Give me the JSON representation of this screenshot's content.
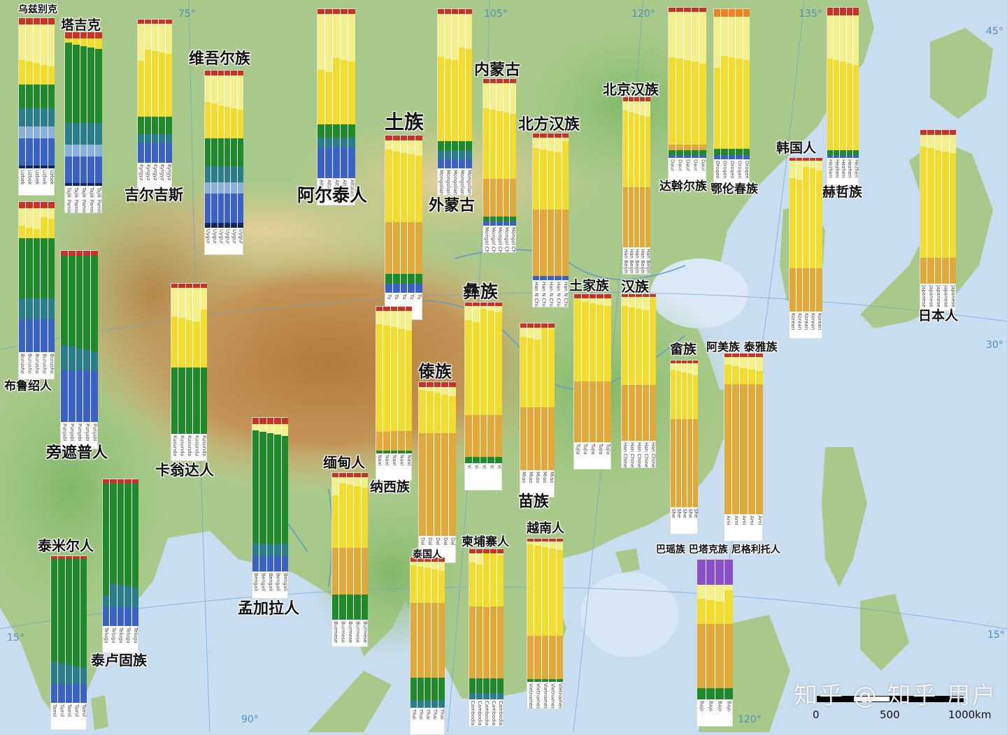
{
  "colors": {
    "k_yellow_light": "#f3f08c",
    "k_yellow": "#f2dd2f",
    "k_gold": "#e1a93a",
    "k_green": "#1f8a2a",
    "k_teal": "#2a7d8a",
    "k_lightblue": "#8bb0dc",
    "k_blue": "#3a62c4",
    "k_navy": "#14245e",
    "k_purple": "#8b4fc9",
    "k_red": "#c73325",
    "k_orange": "#f0821e"
  },
  "grid_labels": [
    "75°",
    "105°",
    "120°",
    "135°",
    "45°",
    "30°",
    "15°",
    "15°",
    "90°",
    "120°"
  ],
  "scale_bar": {
    "labels": [
      "0",
      "500",
      "1000km"
    ]
  },
  "watermark": "知乎 @ 知乎 用户",
  "populations": [
    {
      "id": "uzbek",
      "name": "乌兹别克",
      "sample": "Uzbek",
      "comp": [
        [
          0.04,
          "red"
        ],
        [
          0.28,
          "yellow_light"
        ],
        [
          0.12,
          "yellow"
        ],
        [
          0.16,
          "green"
        ],
        [
          0.12,
          "teal"
        ],
        [
          0.08,
          "lightblue"
        ],
        [
          0.18,
          "blue"
        ],
        [
          0.02,
          "navy"
        ]
      ]
    },
    {
      "id": "tajik",
      "name": "塔吉克",
      "sample": "Tajik Pamiri",
      "comp": [
        [
          0.04,
          "red"
        ],
        [
          0.03,
          "yellow"
        ],
        [
          0.52,
          "green"
        ],
        [
          0.14,
          "teal"
        ],
        [
          0.08,
          "lightblue"
        ],
        [
          0.17,
          "blue"
        ],
        [
          0.02,
          "navy"
        ]
      ]
    },
    {
      "id": "kyrgyz",
      "name": "吉尔吉斯",
      "sample": "Kyrgyz",
      "comp": [
        [
          0.03,
          "red"
        ],
        [
          0.22,
          "yellow_light"
        ],
        [
          0.43,
          "yellow"
        ],
        [
          0.12,
          "green"
        ],
        [
          0.06,
          "teal"
        ],
        [
          0.14,
          "blue"
        ]
      ]
    },
    {
      "id": "uyghur",
      "name": "维吾尔族",
      "sample": "Uygur",
      "comp": [
        [
          0.03,
          "red"
        ],
        [
          0.18,
          "yellow_light"
        ],
        [
          0.22,
          "yellow"
        ],
        [
          0.18,
          "green"
        ],
        [
          0.1,
          "teal"
        ],
        [
          0.07,
          "lightblue"
        ],
        [
          0.19,
          "blue"
        ],
        [
          0.03,
          "navy"
        ]
      ]
    },
    {
      "id": "altaian",
      "name": "阿尔泰人",
      "sample": "Altaian",
      "comp": [
        [
          0.03,
          "red"
        ],
        [
          0.3,
          "yellow_light"
        ],
        [
          0.35,
          "yellow"
        ],
        [
          0.08,
          "green"
        ],
        [
          0.06,
          "teal"
        ],
        [
          0.18,
          "blue"
        ]
      ]
    },
    {
      "id": "tu",
      "name": "土族",
      "sample": "Tu",
      "comp": [
        [
          0.03,
          "red"
        ],
        [
          0.08,
          "yellow_light"
        ],
        [
          0.44,
          "yellow"
        ],
        [
          0.33,
          "gold"
        ],
        [
          0.06,
          "green"
        ],
        [
          0.06,
          "blue"
        ]
      ]
    },
    {
      "id": "mongol",
      "name": "外蒙古",
      "sample": "Mongolian",
      "comp": [
        [
          0.03,
          "red"
        ],
        [
          0.25,
          "yellow_light"
        ],
        [
          0.55,
          "yellow"
        ],
        [
          0.06,
          "green"
        ],
        [
          0.05,
          "teal"
        ],
        [
          0.06,
          "blue"
        ]
      ]
    },
    {
      "id": "inner_mongol",
      "name": "内蒙古",
      "sample": "Mongol China",
      "comp": [
        [
          0.03,
          "red"
        ],
        [
          0.2,
          "yellow_light"
        ],
        [
          0.45,
          "yellow"
        ],
        [
          0.26,
          "gold"
        ],
        [
          0.03,
          "green"
        ],
        [
          0.03,
          "blue"
        ]
      ]
    },
    {
      "id": "northern_han",
      "name": "北方汉族",
      "sample": "Han N China",
      "comp": [
        [
          0.03,
          "red"
        ],
        [
          0.06,
          "yellow_light"
        ],
        [
          0.43,
          "yellow"
        ],
        [
          0.45,
          "gold"
        ],
        [
          0.03,
          "blue"
        ]
      ]
    },
    {
      "id": "beijing_han",
      "name": "北京汉族",
      "sample": "Han Beijing",
      "comp": [
        [
          0.03,
          "red"
        ],
        [
          0.1,
          "yellow_light"
        ],
        [
          0.47,
          "yellow"
        ],
        [
          0.4,
          "gold"
        ]
      ]
    },
    {
      "id": "daur",
      "name": "达斡尔族",
      "sample": "Daur",
      "comp": [
        [
          0.03,
          "red"
        ],
        [
          0.3,
          "yellow_light"
        ],
        [
          0.58,
          "yellow"
        ],
        [
          0.04,
          "gold"
        ],
        [
          0.03,
          "green"
        ],
        [
          0.02,
          "blue"
        ]
      ]
    },
    {
      "id": "oroqen",
      "name": "鄂伦春族",
      "sample": "Oroqen",
      "comp": [
        [
          0.05,
          "orange"
        ],
        [
          0.3,
          "yellow_light"
        ],
        [
          0.58,
          "yellow"
        ],
        [
          0.04,
          "green"
        ],
        [
          0.03,
          "blue"
        ]
      ]
    },
    {
      "id": "hezhen",
      "name": "赫哲族",
      "sample": "Hezhen",
      "comp": [
        [
          0.05,
          "red"
        ],
        [
          0.3,
          "yellow_light"
        ],
        [
          0.6,
          "yellow"
        ],
        [
          0.03,
          "green"
        ],
        [
          0.02,
          "blue"
        ]
      ]
    },
    {
      "id": "korean",
      "name": "韩国人",
      "sample": "Korean",
      "comp": [
        [
          0.02,
          "red"
        ],
        [
          0.08,
          "yellow_light"
        ],
        [
          0.62,
          "yellow"
        ],
        [
          0.28,
          "gold"
        ]
      ]
    },
    {
      "id": "japanese",
      "name": "日本人",
      "sample": "Japanese",
      "comp": [
        [
          0.03,
          "red"
        ],
        [
          0.1,
          "yellow_light"
        ],
        [
          0.7,
          "yellow"
        ],
        [
          0.17,
          "gold"
        ]
      ]
    },
    {
      "id": "burusho",
      "name": "布鲁绍人",
      "sample": "Burusho",
      "comp": [
        [
          0.04,
          "red"
        ],
        [
          0.1,
          "yellow_light"
        ],
        [
          0.1,
          "yellow"
        ],
        [
          0.4,
          "green"
        ],
        [
          0.14,
          "teal"
        ],
        [
          0.22,
          "blue"
        ]
      ]
    },
    {
      "id": "pathan",
      "name": "旁遮普人",
      "sample": "Punjabi",
      "comp": [
        [
          0.03,
          "red"
        ],
        [
          0.55,
          "green"
        ],
        [
          0.12,
          "teal"
        ],
        [
          0.3,
          "blue"
        ]
      ]
    },
    {
      "id": "kusunda",
      "name": "卡翁达人",
      "sample": "Kusunda",
      "comp": [
        [
          0.03,
          "red"
        ],
        [
          0.18,
          "yellow_light"
        ],
        [
          0.35,
          "yellow"
        ],
        [
          0.44,
          "green"
        ]
      ]
    },
    {
      "id": "bengali",
      "name": "孟加拉人",
      "sample": "Bengali",
      "comp": [
        [
          0.04,
          "red"
        ],
        [
          0.08,
          "yellow_light"
        ],
        [
          0.7,
          "green"
        ],
        [
          0.08,
          "teal"
        ],
        [
          0.1,
          "blue"
        ]
      ]
    },
    {
      "id": "tamil",
      "name": "泰米尔人",
      "sample": "Tamil",
      "comp": [
        [
          0.02,
          "red"
        ],
        [
          0.7,
          "green"
        ],
        [
          0.15,
          "teal"
        ],
        [
          0.13,
          "blue"
        ]
      ]
    },
    {
      "id": "telugu",
      "name": "泰卢固族",
      "sample": "Telugu",
      "comp": [
        [
          0.03,
          "red"
        ],
        [
          0.72,
          "green"
        ],
        [
          0.12,
          "teal"
        ],
        [
          0.13,
          "blue"
        ]
      ]
    },
    {
      "id": "naxi",
      "name": "纳西族",
      "sample": "Naxi",
      "comp": [
        [
          0.03,
          "red"
        ],
        [
          0.1,
          "yellow_light"
        ],
        [
          0.72,
          "yellow"
        ],
        [
          0.13,
          "gold"
        ],
        [
          0.02,
          "green"
        ]
      ]
    },
    {
      "id": "yi",
      "name": "彝族",
      "sample": "Yi",
      "comp": [
        [
          0.02,
          "red"
        ],
        [
          0.06,
          "yellow_light"
        ],
        [
          0.62,
          "yellow"
        ],
        [
          0.26,
          "gold"
        ],
        [
          0.04,
          "green"
        ]
      ]
    },
    {
      "id": "dai",
      "name": "傣族",
      "sample": "Dai",
      "comp": [
        [
          0.03,
          "red"
        ],
        [
          0.04,
          "yellow_light"
        ],
        [
          0.26,
          "yellow"
        ],
        [
          0.67,
          "gold"
        ]
      ]
    },
    {
      "id": "miao",
      "name": "苗族",
      "sample": "Miao",
      "comp": [
        [
          0.03,
          "red"
        ],
        [
          0.04,
          "yellow_light"
        ],
        [
          0.5,
          "yellow"
        ],
        [
          0.43,
          "gold"
        ]
      ]
    },
    {
      "id": "tujia",
      "name": "土家族",
      "sample": "Tujia",
      "comp": [
        [
          0.03,
          "red"
        ],
        [
          0.04,
          "yellow_light"
        ],
        [
          0.52,
          "yellow"
        ],
        [
          0.41,
          "gold"
        ]
      ]
    },
    {
      "id": "han",
      "name": "汉族",
      "sample": "Han Chinese",
      "comp": [
        [
          0.02,
          "red"
        ],
        [
          0.05,
          "yellow_light"
        ],
        [
          0.55,
          "yellow"
        ],
        [
          0.38,
          "gold"
        ]
      ]
    },
    {
      "id": "she",
      "name": "畲族",
      "sample": "She",
      "comp": [
        [
          0.02,
          "red"
        ],
        [
          0.08,
          "yellow_light"
        ],
        [
          0.3,
          "yellow"
        ],
        [
          0.6,
          "gold"
        ]
      ]
    },
    {
      "id": "ami_atayal",
      "name": "阿美族 泰雅族",
      "sample": "Ami",
      "comp": [
        [
          0.02,
          "red"
        ],
        [
          0.05,
          "yellow_light"
        ],
        [
          0.12,
          "yellow"
        ],
        [
          0.81,
          "gold"
        ]
      ]
    },
    {
      "id": "burmese",
      "name": "缅甸人",
      "sample": "Burmese",
      "comp": [
        [
          0.03,
          "red"
        ],
        [
          0.08,
          "yellow_light"
        ],
        [
          0.4,
          "yellow"
        ],
        [
          0.32,
          "gold"
        ],
        [
          0.17,
          "green"
        ]
      ]
    },
    {
      "id": "thai",
      "name": "泰国人",
      "sample": "Thai",
      "comp": [
        [
          0.03,
          "red"
        ],
        [
          0.03,
          "yellow_light"
        ],
        [
          0.24,
          "yellow"
        ],
        [
          0.5,
          "gold"
        ],
        [
          0.15,
          "green"
        ],
        [
          0.05,
          "teal"
        ]
      ]
    },
    {
      "id": "cambodian",
      "name": "柬埔寨人",
      "sample": "Cambodian",
      "comp": [
        [
          0.03,
          "red"
        ],
        [
          0.03,
          "yellow_light"
        ],
        [
          0.32,
          "yellow"
        ],
        [
          0.48,
          "gold"
        ],
        [
          0.1,
          "green"
        ],
        [
          0.04,
          "teal"
        ]
      ]
    },
    {
      "id": "vietnamese",
      "name": "越南人",
      "sample": "Vietnamese",
      "comp": [
        [
          0.02,
          "red"
        ],
        [
          0.04,
          "yellow_light"
        ],
        [
          0.62,
          "yellow"
        ],
        [
          0.3,
          "gold"
        ],
        [
          0.02,
          "green"
        ]
      ]
    },
    {
      "id": "austronesian",
      "name": "巴瑶族 巴塔克族 尼格利托人",
      "sample": "Bajo",
      "comp": [
        [
          0.18,
          "purple"
        ],
        [
          0.08,
          "yellow_light"
        ],
        [
          0.2,
          "yellow"
        ],
        [
          0.46,
          "gold"
        ],
        [
          0.08,
          "green"
        ]
      ]
    }
  ]
}
